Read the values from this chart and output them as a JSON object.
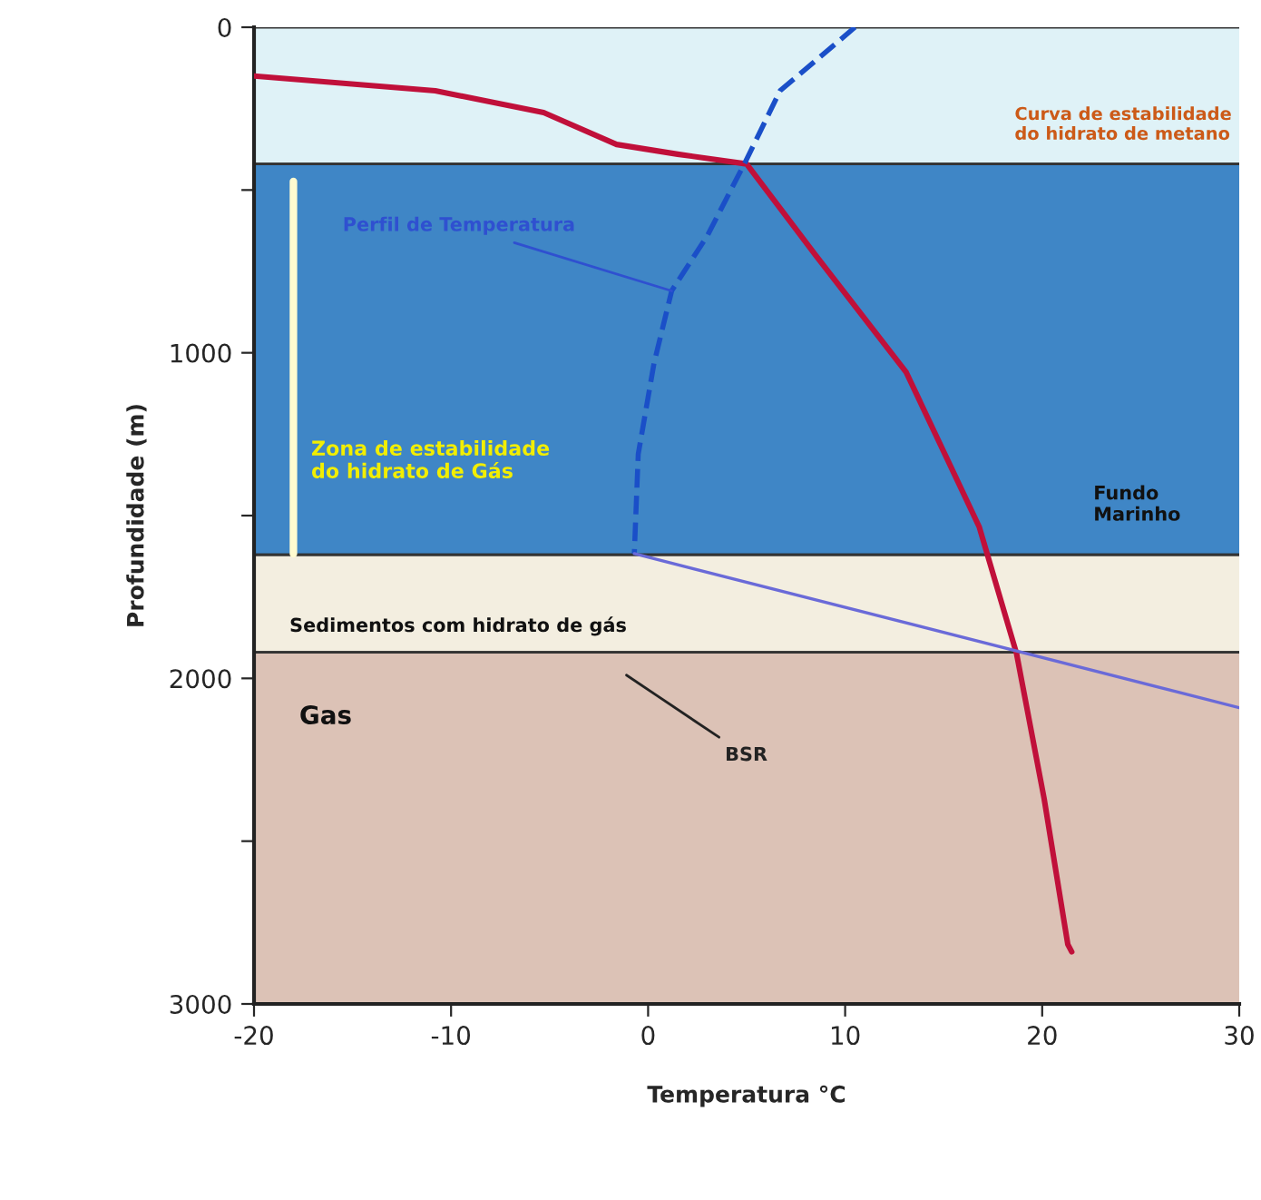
{
  "chart_data": {
    "type": "line",
    "xlabel": "Temperatura °C",
    "ylabel": "Profundidade (m)",
    "xlim": [
      -20,
      30
    ],
    "xticks": [
      -20,
      -10,
      0,
      10,
      20,
      30
    ],
    "ylim": [
      3000,
      0
    ],
    "yticks": [
      0,
      {
        "value": 500,
        "label": null
      },
      1000,
      {
        "value": 1500,
        "label": null
      },
      2000,
      {
        "value": 2500,
        "label": null
      },
      3000
    ],
    "grid": false,
    "legend": false,
    "marker": "none",
    "bands": [
      {
        "axis": "y",
        "from": 0,
        "to": 420,
        "color": "#dff2f7"
      },
      {
        "axis": "y",
        "from": 420,
        "to": 1620,
        "color": "#3f86c6"
      },
      {
        "axis": "y",
        "from": 1620,
        "to": 1920,
        "color": "#f3eee0"
      },
      {
        "axis": "y",
        "from": 1920,
        "to": 3000,
        "color": "#dcc2b6"
      }
    ],
    "series": [
      {
        "color": "#c0103a",
        "line_style": "solid",
        "x": [
          -20,
          -10.8,
          -5.3,
          -1.6,
          1.5,
          5,
          8.5,
          13.1,
          16.8,
          18.7,
          20.1,
          21.3,
          21.5
        ],
        "values": [
          150,
          195,
          262,
          360,
          390,
          420,
          700,
          1060,
          1534,
          1924,
          2370,
          2817,
          2840
        ]
      },
      {
        "color": "#1a4fc8",
        "line_style": "dashed",
        "x": [
          10.5,
          6.7,
          4.9,
          3.0,
          1.2,
          0.3,
          -0.5,
          -0.7
        ],
        "values": [
          0,
          195,
          418,
          641,
          809,
          1032,
          1311,
          1617
        ]
      },
      {
        "color": "#6a6ad8",
        "line_style": "solid",
        "x": [
          -0.7,
          30
        ],
        "values": [
          1617,
          2090
        ]
      },
      {
        "color": "#fffbd0",
        "line_style": "solid",
        "x": [
          -18,
          -18
        ],
        "values": [
          474,
          1617
        ]
      }
    ],
    "annotations": [
      {
        "text": "Perfil de Temperatura",
        "x": 1.2,
        "y": 810
      },
      "Curva de estabilidade\ndo hidrato de metano",
      "Zona de estabilidade\ndo hidrato de Gás",
      "Fundo\nMarinho",
      "Sedimentos com hidrato de gás",
      "Gas",
      "BSR"
    ]
  }
}
